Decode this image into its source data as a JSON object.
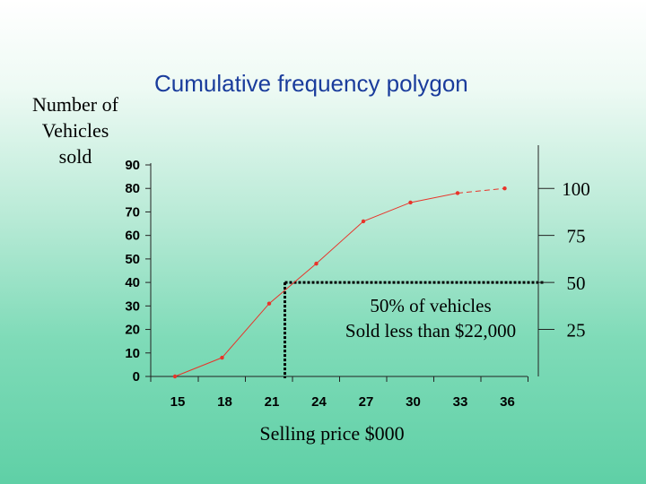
{
  "chart_data": {
    "type": "line",
    "title": "Cumulative frequency polygon",
    "ylabel_lines": [
      "Number of",
      "Vehicles",
      "sold"
    ],
    "xlabel": "Selling price $000",
    "x": [
      15,
      18,
      21,
      24,
      27,
      30,
      33,
      36
    ],
    "x_tick_labels": [
      "15",
      "18",
      "21",
      "24",
      "27",
      "30",
      "33",
      "36"
    ],
    "series": [
      {
        "values": [
          0,
          8,
          31,
          48,
          66,
          74,
          78,
          80
        ],
        "color": "#e8342a"
      }
    ],
    "ylim": [
      0,
      90
    ],
    "y_ticks": [
      0,
      10,
      20,
      30,
      40,
      50,
      60,
      70,
      80,
      90
    ],
    "y_tick_labels": [
      "0",
      "10",
      "20",
      "30",
      "40",
      "50",
      "60",
      "70",
      "80",
      "90"
    ],
    "grid": false,
    "secondary_axis": {
      "side": "right",
      "label": "",
      "ticks": [
        {
          "label": "100",
          "value": 80
        },
        {
          "label": "75",
          "value": 60
        },
        {
          "label": "50",
          "value": 40
        },
        {
          "label": "25",
          "value": 20
        }
      ]
    },
    "annotation": {
      "lines": [
        "50% of vehicles",
        "Sold less than $22,000"
      ],
      "reference_x": 22,
      "reference_y": 40
    }
  }
}
